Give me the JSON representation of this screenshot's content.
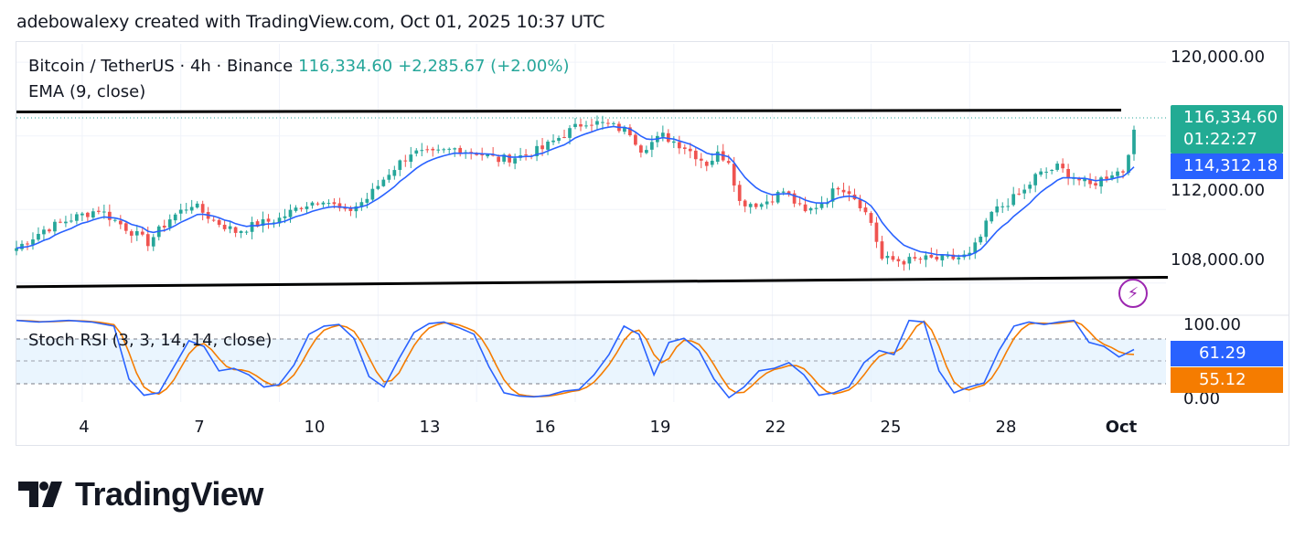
{
  "credit": "adebowalexy created with TradingView.com, Oct 01, 2025 10:37 UTC",
  "legend": {
    "symbol": "Bitcoin / TetherUS · 4h · Binance",
    "price": "116,334.60",
    "change": "+2,285.67 (+2.00%)",
    "ema": "EMA (9, close)",
    "stoch": "Stoch RSI (3, 3, 14, 14, close)"
  },
  "badges": {
    "price": "116,334.60",
    "countdown": "01:22:27",
    "ema": "114,312.18",
    "k": "61.29",
    "d": "55.12"
  },
  "axis": {
    "price_ticks": [
      "120,000.00",
      "112,000.00",
      "108,000.00"
    ],
    "stoch_ticks": [
      "100.00",
      "0.00"
    ],
    "x_ticks": [
      "4",
      "7",
      "10",
      "13",
      "16",
      "19",
      "22",
      "25",
      "28",
      "Oct"
    ]
  },
  "icons": {
    "flash": "lightning-icon",
    "logo": "tradingview-logo"
  },
  "colors": {
    "up": "#26a69a",
    "down": "#ef5350",
    "ema": "#2962ff",
    "k": "#2962ff",
    "d": "#f57c00",
    "trendline": "#000000",
    "band": "#e3f2fd"
  },
  "brand": "TradingView",
  "chart_data": {
    "type": "candlestick",
    "symbol": "Bitcoin / TetherUS",
    "interval": "4h",
    "exchange": "Binance",
    "ylim": [
      106500,
      121000
    ],
    "y_ticks": [
      120000,
      112000,
      108000
    ],
    "x_ticks": [
      "4",
      "7",
      "10",
      "13",
      "16",
      "19",
      "22",
      "25",
      "28",
      "Oct"
    ],
    "candle_count": 181,
    "close_path": [
      [
        0,
        109900
      ],
      [
        5,
        110900
      ],
      [
        10,
        111500
      ],
      [
        15,
        112000
      ],
      [
        20,
        111000
      ],
      [
        24,
        110200
      ],
      [
        28,
        111500
      ],
      [
        32,
        112300
      ],
      [
        36,
        111400
      ],
      [
        40,
        110800
      ],
      [
        44,
        111200
      ],
      [
        48,
        111500
      ],
      [
        52,
        112200
      ],
      [
        56,
        112600
      ],
      [
        60,
        111800
      ],
      [
        64,
        112600
      ],
      [
        68,
        114000
      ],
      [
        72,
        115100
      ],
      [
        76,
        115000
      ],
      [
        80,
        115300
      ],
      [
        84,
        115100
      ],
      [
        88,
        114700
      ],
      [
        92,
        114900
      ],
      [
        96,
        115300
      ],
      [
        98,
        115700
      ],
      [
        100,
        116100
      ],
      [
        104,
        116800
      ],
      [
        108,
        116600
      ],
      [
        112,
        116200
      ],
      [
        114,
        115300
      ],
      [
        118,
        116000
      ],
      [
        122,
        115400
      ],
      [
        126,
        114500
      ],
      [
        128,
        115000
      ],
      [
        130,
        114700
      ],
      [
        132,
        112400
      ],
      [
        136,
        112300
      ],
      [
        140,
        113000
      ],
      [
        144,
        111800
      ],
      [
        148,
        112600
      ],
      [
        150,
        113300
      ],
      [
        152,
        113000
      ],
      [
        154,
        112300
      ],
      [
        156,
        111300
      ],
      [
        158,
        109300
      ],
      [
        162,
        109200
      ],
      [
        166,
        109300
      ],
      [
        170,
        109300
      ],
      [
        174,
        109500
      ],
      [
        176,
        110500
      ],
      [
        178,
        111800
      ],
      [
        180,
        112200
      ],
      [
        184,
        113000
      ],
      [
        186,
        113800
      ],
      [
        190,
        114300
      ],
      [
        194,
        113600
      ],
      [
        196,
        113300
      ],
      [
        200,
        114000
      ],
      [
        202,
        114100
      ],
      [
        204,
        116300
      ]
    ],
    "last": {
      "close": 116334.6,
      "change": 2285.67,
      "change_pct": 2.0
    },
    "trendlines": [
      {
        "from": [
          0,
          117300
        ],
        "to": [
          204,
          117400
        ]
      },
      {
        "from": [
          0,
          107800
        ],
        "to": [
          204,
          108300
        ]
      }
    ],
    "ema": {
      "name": "EMA (9, close)",
      "last": 114312.18
    },
    "stoch_rsi": {
      "name": "Stoch RSI (3, 3, 14, 14, close)",
      "ylim": [
        0,
        100
      ],
      "y_ticks": [
        100,
        0
      ],
      "bands": [
        80,
        20
      ],
      "k_last": 61.29,
      "d_last": 55.12,
      "k_path": [
        [
          0,
          97
        ],
        [
          3,
          95
        ],
        [
          7,
          97
        ],
        [
          10,
          95
        ],
        [
          13,
          90
        ],
        [
          15,
          25
        ],
        [
          17,
          5
        ],
        [
          19,
          8
        ],
        [
          21,
          40
        ],
        [
          23,
          72
        ],
        [
          25,
          65
        ],
        [
          27,
          35
        ],
        [
          29,
          38
        ],
        [
          31,
          30
        ],
        [
          33,
          15
        ],
        [
          35,
          18
        ],
        [
          37,
          42
        ],
        [
          39,
          80
        ],
        [
          41,
          90
        ],
        [
          43,
          92
        ],
        [
          45,
          75
        ],
        [
          47,
          28
        ],
        [
          49,
          15
        ],
        [
          51,
          50
        ],
        [
          53,
          82
        ],
        [
          55,
          93
        ],
        [
          57,
          95
        ],
        [
          59,
          88
        ],
        [
          61,
          80
        ],
        [
          63,
          40
        ],
        [
          65,
          8
        ],
        [
          67,
          4
        ],
        [
          69,
          3
        ],
        [
          71,
          5
        ],
        [
          73,
          10
        ],
        [
          75,
          12
        ],
        [
          77,
          30
        ],
        [
          79,
          55
        ],
        [
          81,
          90
        ],
        [
          83,
          80
        ],
        [
          85,
          30
        ],
        [
          87,
          70
        ],
        [
          89,
          75
        ],
        [
          91,
          60
        ],
        [
          93,
          25
        ],
        [
          95,
          2
        ],
        [
          97,
          15
        ],
        [
          99,
          35
        ],
        [
          101,
          38
        ],
        [
          103,
          45
        ],
        [
          105,
          30
        ],
        [
          107,
          5
        ],
        [
          109,
          8
        ],
        [
          111,
          15
        ],
        [
          113,
          45
        ],
        [
          115,
          60
        ],
        [
          117,
          55
        ],
        [
          119,
          97
        ],
        [
          121,
          95
        ],
        [
          123,
          35
        ],
        [
          125,
          8
        ],
        [
          127,
          15
        ],
        [
          129,
          20
        ],
        [
          131,
          60
        ],
        [
          133,
          90
        ],
        [
          135,
          95
        ],
        [
          137,
          92
        ],
        [
          139,
          95
        ],
        [
          141,
          97
        ],
        [
          143,
          70
        ],
        [
          145,
          65
        ],
        [
          147,
          52
        ],
        [
          149,
          61
        ]
      ]
    }
  }
}
